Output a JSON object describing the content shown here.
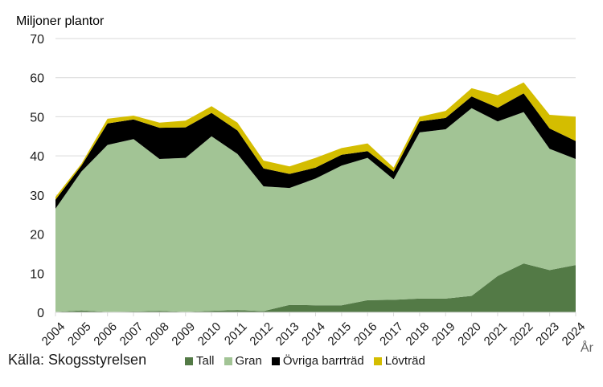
{
  "chart_data": {
    "type": "area",
    "stacked": true,
    "title": "",
    "ylabel": "Miljoner plantor",
    "xlabel": "År",
    "ylim": [
      0,
      70
    ],
    "yticks": [
      0,
      10,
      20,
      30,
      40,
      50,
      60,
      70
    ],
    "grid": true,
    "legend_position": "bottom",
    "categories": [
      "2004",
      "2005",
      "2006",
      "2007",
      "2008",
      "2009",
      "2010",
      "2011",
      "2012",
      "2013",
      "2014",
      "2015",
      "2016",
      "2017",
      "2018",
      "2019",
      "2020",
      "2021",
      "2022",
      "2023",
      "2024"
    ],
    "series": [
      {
        "name": "Tall",
        "color": "#537a46",
        "values": [
          0.1,
          0.5,
          0.1,
          0.2,
          0.4,
          0.1,
          0.4,
          0.6,
          0.3,
          1.9,
          1.8,
          1.8,
          3.1,
          3.2,
          3.5,
          3.5,
          4.2,
          9.3,
          12.5,
          10.8,
          12.1
        ]
      },
      {
        "name": "Gran",
        "color": "#a2c495",
        "values": [
          26.4,
          35.5,
          42.7,
          44.1,
          38.8,
          39.4,
          44.6,
          39.9,
          31.9,
          29.9,
          32.4,
          35.7,
          36.4,
          30.8,
          42.5,
          43.3,
          48.0,
          39.5,
          38.7,
          31.0,
          27.1
        ]
      },
      {
        "name": "Övriga barrträd",
        "color": "#000000",
        "values": [
          2.3,
          1.5,
          5.5,
          5.0,
          8.0,
          7.8,
          6.0,
          6.0,
          4.6,
          3.6,
          2.8,
          2.8,
          1.7,
          2.0,
          2.8,
          2.9,
          3.0,
          3.5,
          4.8,
          5.2,
          4.6
        ]
      },
      {
        "name": "Lövträd",
        "color": "#d4bd00",
        "values": [
          0.7,
          0.5,
          1.2,
          1.0,
          1.3,
          1.7,
          1.7,
          2.0,
          2.0,
          1.9,
          2.5,
          1.7,
          2.0,
          1.0,
          1.2,
          1.8,
          2.1,
          3.2,
          2.8,
          3.5,
          6.2
        ]
      }
    ],
    "source": "Källa: Skogsstyrelsen"
  },
  "labels": {
    "y_title": "Miljoner plantor",
    "x_unit": "År",
    "source": "Källa: Skogsstyrelsen"
  }
}
